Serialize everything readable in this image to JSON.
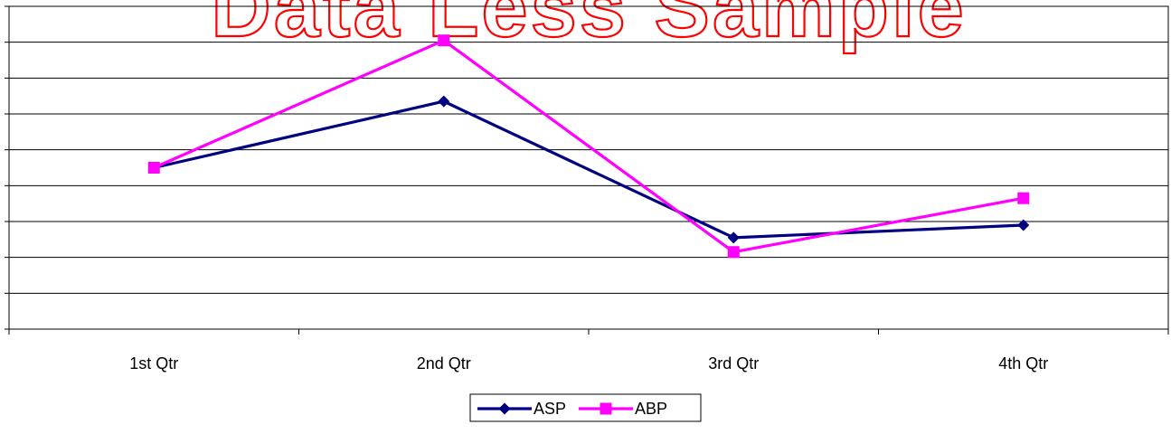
{
  "chart_data": {
    "type": "line",
    "categories": [
      "1st Qtr",
      "2nd Qtr",
      "3rd Qtr",
      "4th Qtr"
    ],
    "series": [
      {
        "name": "ASP",
        "values": [
          4.5,
          6.35,
          2.55,
          2.9
        ],
        "color": "#000080",
        "marker": "diamond"
      },
      {
        "name": "ABP",
        "values": [
          4.5,
          8.05,
          2.15,
          3.65
        ],
        "color": "#ff00ff",
        "marker": "square"
      }
    ],
    "ylim": [
      0,
      9
    ],
    "y_gridlines": true,
    "y_tick_labels_visible": false,
    "legend_placement": "bottom",
    "watermark": "Data Less Sample",
    "watermark_color": "#ff0000"
  }
}
